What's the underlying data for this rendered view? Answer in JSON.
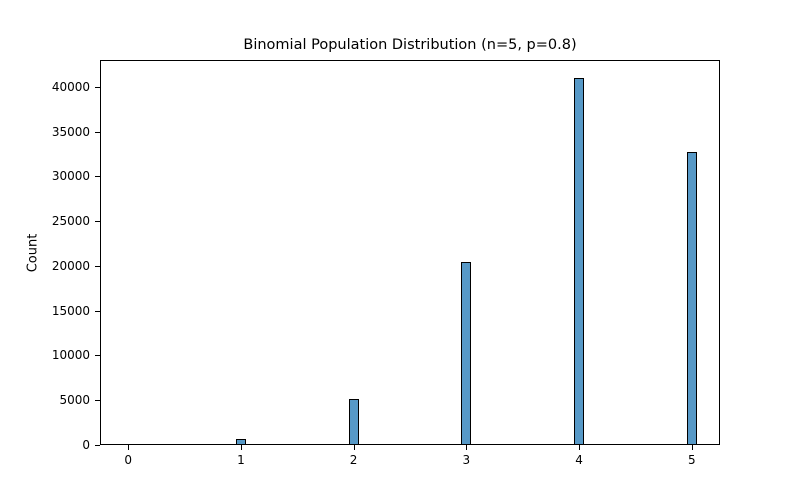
{
  "chart_data": {
    "type": "bar",
    "title": "Binomial Population Distribution (n=5, p=0.8)",
    "xlabel": "",
    "ylabel": "Count",
    "categories": [
      0,
      1,
      2,
      3,
      4,
      5
    ],
    "values": [
      32,
      640,
      5120,
      20480,
      40960,
      32768
    ],
    "ylim": [
      0,
      43000
    ],
    "xlim": [
      -0.25,
      5.25
    ],
    "yticks": [
      0,
      5000,
      10000,
      15000,
      20000,
      25000,
      30000,
      35000,
      40000
    ],
    "xticks": [
      0,
      1,
      2,
      3,
      4,
      5
    ],
    "grid": false,
    "bar_color": "#5799c7"
  }
}
